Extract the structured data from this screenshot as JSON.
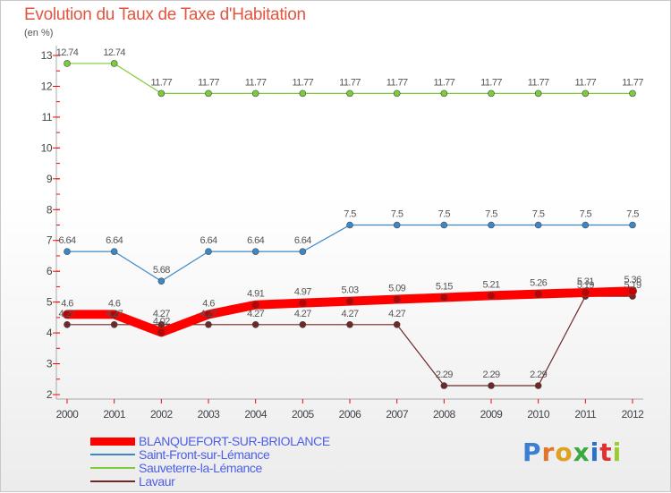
{
  "title": "Evolution du Taux de Taxe d'Habitation",
  "unit": "(en %)",
  "brand": "Proxiti",
  "chart_data": {
    "type": "line",
    "x": [
      "2000",
      "2001",
      "2002",
      "2003",
      "2004",
      "2005",
      "2006",
      "2007",
      "2008",
      "2009",
      "2010",
      "2011",
      "2012"
    ],
    "yticks": [
      2,
      3,
      4,
      5,
      6,
      7,
      8,
      9,
      10,
      11,
      12,
      13
    ],
    "ylim": [
      2,
      13
    ],
    "grid": false,
    "legend_position": "bottom-left",
    "series": [
      {
        "name": "BLANQUEFORT-SUR-BRIOLANCE",
        "color": "#ff0000",
        "values": [
          4.6,
          4.6,
          4.02,
          4.6,
          4.91,
          4.97,
          5.03,
          5.09,
          5.15,
          5.21,
          5.26,
          5.31,
          5.36
        ],
        "labels": [
          "4.6",
          "4.6",
          "4.02",
          "4.6",
          "4.91",
          "4.97",
          "5.03",
          "5.09",
          "5.15",
          "5.21",
          "5.26",
          "5.31",
          "5.36"
        ]
      },
      {
        "name": "Saint-Front-sur-Lémance",
        "color": "#3c87c8",
        "values": [
          6.64,
          6.64,
          5.68,
          6.64,
          6.64,
          6.64,
          7.5,
          7.5,
          7.5,
          7.5,
          7.5,
          7.5,
          7.5
        ],
        "labels": [
          "6.64",
          "6.64",
          "5.68",
          "6.64",
          "6.64",
          "6.64",
          "7.5",
          "7.5",
          "7.5",
          "7.5",
          "7.5",
          "7.5",
          "7.5"
        ]
      },
      {
        "name": "Sauveterre-la-Lémance",
        "color": "#7ccc3c",
        "values": [
          12.74,
          12.74,
          11.77,
          11.77,
          11.77,
          11.77,
          11.77,
          11.77,
          11.77,
          11.77,
          11.77,
          11.77,
          11.77
        ],
        "labels": [
          "12.74",
          "12.74",
          "11.77",
          "11.77",
          "11.77",
          "11.77",
          "11.77",
          "11.77",
          "11.77",
          "11.77",
          "11.77",
          "11.77",
          "11.77"
        ]
      },
      {
        "name": "Lavaur",
        "color": "#6e2828",
        "values": [
          4.27,
          4.27,
          4.27,
          4.27,
          4.27,
          4.27,
          4.27,
          4.27,
          2.29,
          2.29,
          2.29,
          5.19,
          5.19
        ],
        "labels": [
          "4.27",
          "4.27",
          "4.27",
          "4.27",
          "4.27",
          "4.27",
          "4.27",
          "4.27",
          "2.29",
          "2.29",
          "2.29",
          "5.19",
          "5.19"
        ]
      }
    ]
  }
}
